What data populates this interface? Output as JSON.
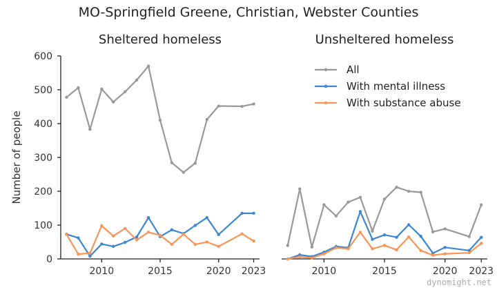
{
  "figure_title": "MO-Springfield Greene, Christian, Webster Counties",
  "watermark": "dynomight.net",
  "colors": {
    "all": "#999999",
    "mental": "#3a86d4",
    "substance": "#f89556"
  },
  "chart_data": [
    {
      "type": "line",
      "title": "Sheltered homeless",
      "ylabel": "Number of people",
      "xlabel": "",
      "xlim": [
        2006.5,
        2023.5
      ],
      "ylim": [
        0,
        600
      ],
      "xticks": [
        2010,
        2015,
        2020,
        2023
      ],
      "yticks": [
        0,
        100,
        200,
        300,
        400,
        500,
        600
      ],
      "grid": false,
      "x": [
        2007,
        2008,
        2009,
        2010,
        2011,
        2012,
        2013,
        2014,
        2015,
        2016,
        2017,
        2018,
        2019,
        2020,
        2022,
        2023
      ],
      "series": [
        {
          "name": "All",
          "key": "all",
          "values": [
            478,
            506,
            383,
            502,
            464,
            494,
            529,
            570,
            410,
            284,
            256,
            283,
            412,
            452,
            451,
            458
          ]
        },
        {
          "name": "With mental illness",
          "key": "mental",
          "values": [
            73,
            62,
            8,
            44,
            37,
            49,
            65,
            122,
            66,
            86,
            75,
            99,
            122,
            72,
            135,
            135
          ]
        },
        {
          "name": "With substance abuse",
          "key": "substance",
          "values": [
            72,
            14,
            17,
            98,
            68,
            90,
            56,
            79,
            70,
            43,
            73,
            43,
            50,
            37,
            74,
            53
          ]
        }
      ]
    },
    {
      "type": "line",
      "title": "Unsheltered homeless",
      "xlabel": "",
      "xlim": [
        2006.5,
        2023.5
      ],
      "ylim": [
        0,
        600
      ],
      "xticks": [
        2010,
        2015,
        2020,
        2023
      ],
      "grid": false,
      "legend": "upper-right",
      "x": [
        2007,
        2008,
        2009,
        2010,
        2011,
        2012,
        2013,
        2014,
        2015,
        2016,
        2017,
        2018,
        2019,
        2020,
        2022,
        2023
      ],
      "series": [
        {
          "name": "All",
          "key": "all",
          "values": [
            40,
            207,
            35,
            160,
            127,
            168,
            182,
            82,
            177,
            212,
            200,
            197,
            80,
            89,
            66,
            160
          ]
        },
        {
          "name": "With mental illness",
          "key": "mental",
          "values": [
            0,
            12,
            7,
            20,
            37,
            33,
            140,
            58,
            71,
            64,
            101,
            67,
            17,
            34,
            25,
            64
          ]
        },
        {
          "name": "With substance abuse",
          "key": "substance",
          "values": [
            0,
            6,
            3,
            15,
            33,
            30,
            79,
            30,
            40,
            27,
            65,
            25,
            11,
            15,
            18,
            46
          ]
        }
      ]
    }
  ]
}
